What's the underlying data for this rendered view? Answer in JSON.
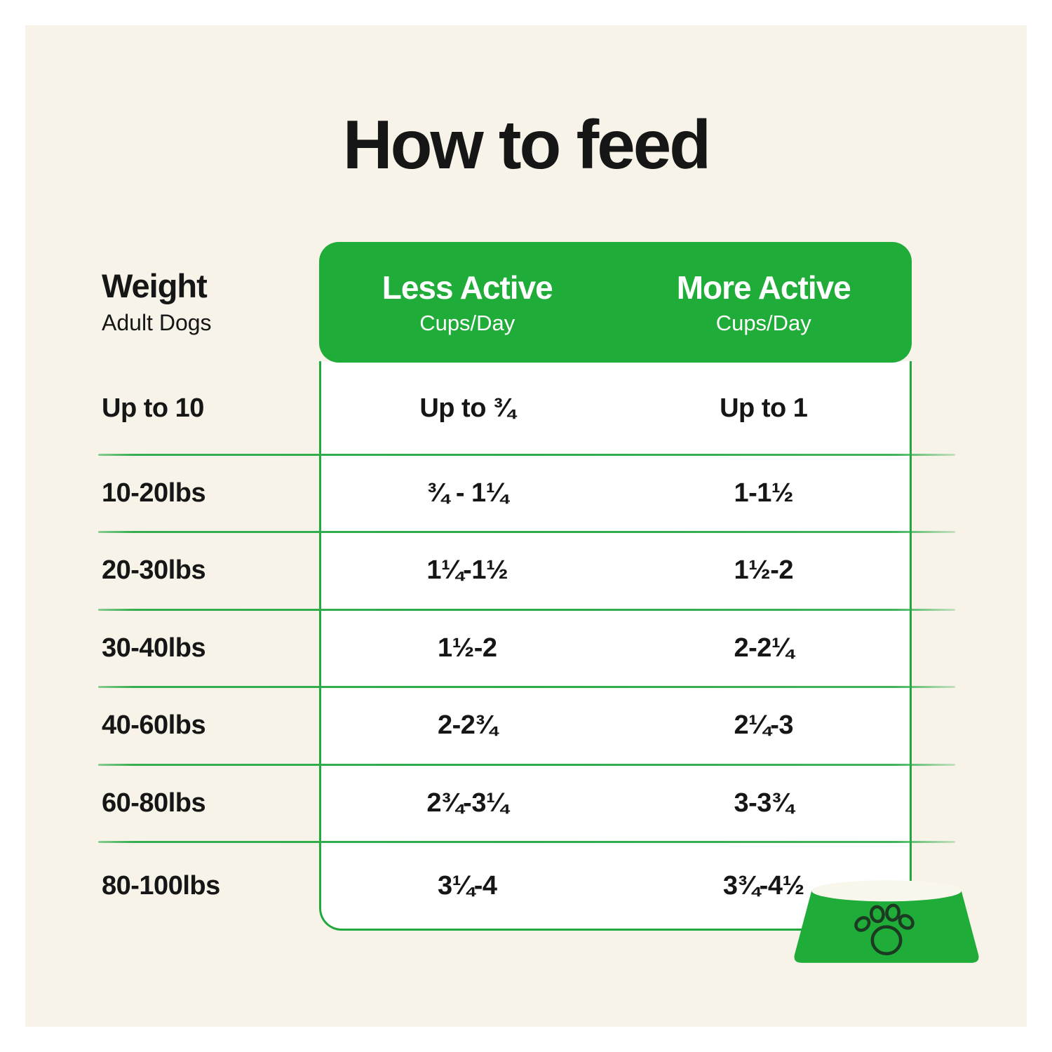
{
  "page": {
    "title": "How to feed",
    "background_color": "#f7f3e8",
    "accent_green": "#1fac38",
    "line_green": "#2cab48",
    "text_color": "#161616"
  },
  "table": {
    "weight_header": {
      "title": "Weight",
      "subtitle": "Adult Dogs"
    },
    "columns": [
      {
        "label": "Less Active",
        "sublabel": "Cups/Day"
      },
      {
        "label": "More Active",
        "sublabel": "Cups/Day"
      }
    ],
    "rows": [
      {
        "weight": "Up to 10",
        "less_active": "Up to ¾",
        "more_active": "Up to 1"
      },
      {
        "weight": "10-20lbs",
        "less_active": "¾ - 1¼",
        "more_active": "1-1½"
      },
      {
        "weight": "20-30lbs",
        "less_active": "1¼-1½",
        "more_active": "1½-2"
      },
      {
        "weight": "30-40lbs",
        "less_active": "1½-2",
        "more_active": "2-2¼"
      },
      {
        "weight": "40-60lbs",
        "less_active": "2-2¾",
        "more_active": "2¼-3"
      },
      {
        "weight": "60-80lbs",
        "less_active": "2¾-3¼",
        "more_active": "3-3¾"
      },
      {
        "weight": "80-100lbs",
        "less_active": "3¼-4",
        "more_active": "3¾-4½"
      }
    ]
  },
  "footer": {
    "bowl_icon": "dog-bowl-with-paw-print-icon"
  }
}
